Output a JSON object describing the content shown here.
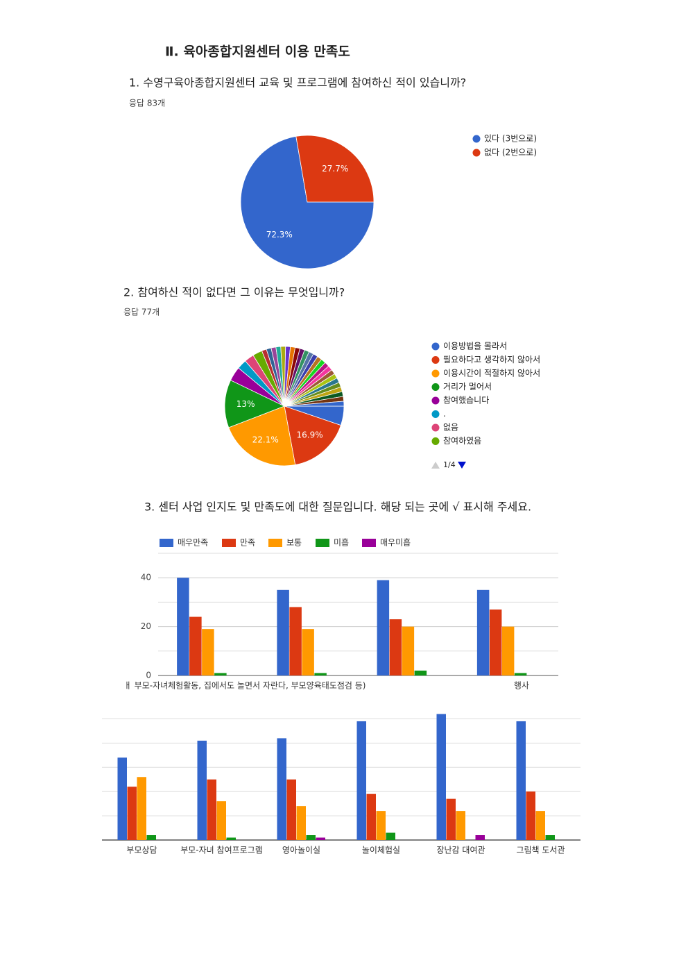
{
  "heading": "Ⅱ. 육아종합지원센터 이용 만족도",
  "chart_data": [
    {
      "type": "pie",
      "title": "1. 수영구육아종합지원센터 교육 및 프로그램에 참여하신 적이 있습니까?",
      "subtitle": "응답 83개",
      "categories": [
        "있다 (3번으로)",
        "없다 (2번으로)"
      ],
      "values": [
        72.3,
        27.7
      ],
      "value_labels": [
        "72.3%",
        "27.7%"
      ],
      "colors": [
        "#3366cc",
        "#dc3912"
      ]
    },
    {
      "type": "pie",
      "title": "2. 참여하신 적이 없다면 그 이유는 무엇입니까?",
      "subtitle": "응답 77개",
      "categories": [
        "이용방법을 몰라서",
        "필요하다고 생각하지 않아서",
        "이용시간이 적절하지 않아서",
        "거리가 멀어서",
        "참여했습니다",
        ".",
        "없음",
        "참여하였음",
        null,
        null,
        null,
        null,
        null,
        null,
        null,
        null,
        null,
        null,
        null,
        null,
        null,
        null,
        null,
        null,
        null,
        null,
        null,
        null,
        null,
        null,
        null,
        null
      ],
      "values": [
        5.2,
        16.9,
        22.1,
        13,
        3.9,
        2.6,
        2.6,
        2.6,
        1.3,
        1.3,
        1.3,
        1.3,
        1.3,
        1.3,
        1.3,
        1.3,
        1.3,
        1.3,
        1.3,
        1.3,
        1.3,
        1.3,
        1.3,
        1.3,
        1.3,
        1.3,
        1.3,
        1.3,
        1.3,
        1.3,
        1.3,
        1.3
      ],
      "value_labels": [
        null,
        "16.9%",
        "22.1%",
        "13%",
        null,
        null,
        null,
        null,
        null,
        null,
        null,
        null,
        null,
        null,
        null,
        null,
        null,
        null,
        null,
        null,
        null,
        null,
        null,
        null,
        null,
        null,
        null,
        null,
        null,
        null,
        null,
        null
      ],
      "colors": [
        "#3366cc",
        "#dc3912",
        "#ff9900",
        "#109618",
        "#990099",
        "#0099c6",
        "#dd4477",
        "#66aa00",
        "#b82e2e",
        "#316395",
        "#994499",
        "#22aa99",
        "#aaaa11",
        "#6633cc",
        "#e67300",
        "#8b0707",
        "#651067",
        "#329262",
        "#5574a6",
        "#3b3eac",
        "#b77322",
        "#16d620",
        "#b91383",
        "#f4359e",
        "#9c5935",
        "#a9c413",
        "#2a778d",
        "#668d1c",
        "#bea413",
        "#0c5922",
        "#743411",
        "#3366cc"
      ],
      "legend_page": "1/4"
    },
    {
      "type": "bar",
      "title": "3. 센터 사업 인지도 및 만족도에 대한 질문입니다. 해당 되는 곳에 √ 표시해 주세요.",
      "categories": [
        "ㅐ 부모-자녀체험활동, 집에서도 놀면서 자란다, 부모양육태도점검 등)",
        null,
        null,
        "행사"
      ],
      "series": [
        {
          "name": "매우만족",
          "color": "#3366cc",
          "values": [
            40,
            35,
            39,
            35
          ]
        },
        {
          "name": "만족",
          "color": "#dc3912",
          "values": [
            24,
            28,
            23,
            27
          ]
        },
        {
          "name": "보통",
          "color": "#ff9900",
          "values": [
            19,
            19,
            20,
            20
          ]
        },
        {
          "name": "미흡",
          "color": "#109618",
          "values": [
            1,
            1,
            2,
            1
          ]
        },
        {
          "name": "매우미흡",
          "color": "#990099",
          "values": [
            0,
            0,
            0,
            0
          ]
        }
      ],
      "ylim": [
        0,
        50
      ],
      "yticks": [
        0,
        20,
        40
      ],
      "minor_yticks": [
        10,
        30,
        50
      ],
      "grid": true,
      "legend": "top"
    },
    {
      "type": "bar",
      "categories": [
        "부모상담",
        "부모-자녀 참여프로그램",
        "영아놀이실",
        "놀이체험실",
        "장난감 대여관",
        "그림책 도서관"
      ],
      "series": [
        {
          "name": "매우만족",
          "color": "#3366cc",
          "values": [
            34,
            41,
            42,
            49,
            52,
            49
          ]
        },
        {
          "name": "만족",
          "color": "#dc3912",
          "values": [
            22,
            25,
            25,
            19,
            17,
            20
          ]
        },
        {
          "name": "보통",
          "color": "#ff9900",
          "values": [
            26,
            16,
            14,
            12,
            12,
            12
          ]
        },
        {
          "name": "미흡",
          "color": "#109618",
          "values": [
            2,
            1,
            2,
            3,
            0,
            2
          ]
        },
        {
          "name": "매우미흡",
          "color": "#990099",
          "values": [
            0,
            0,
            1,
            0,
            2,
            0
          ]
        }
      ],
      "ylim": [
        0,
        53
      ],
      "minor_yticks": [
        10,
        20,
        30,
        40,
        50
      ],
      "grid": true
    }
  ]
}
